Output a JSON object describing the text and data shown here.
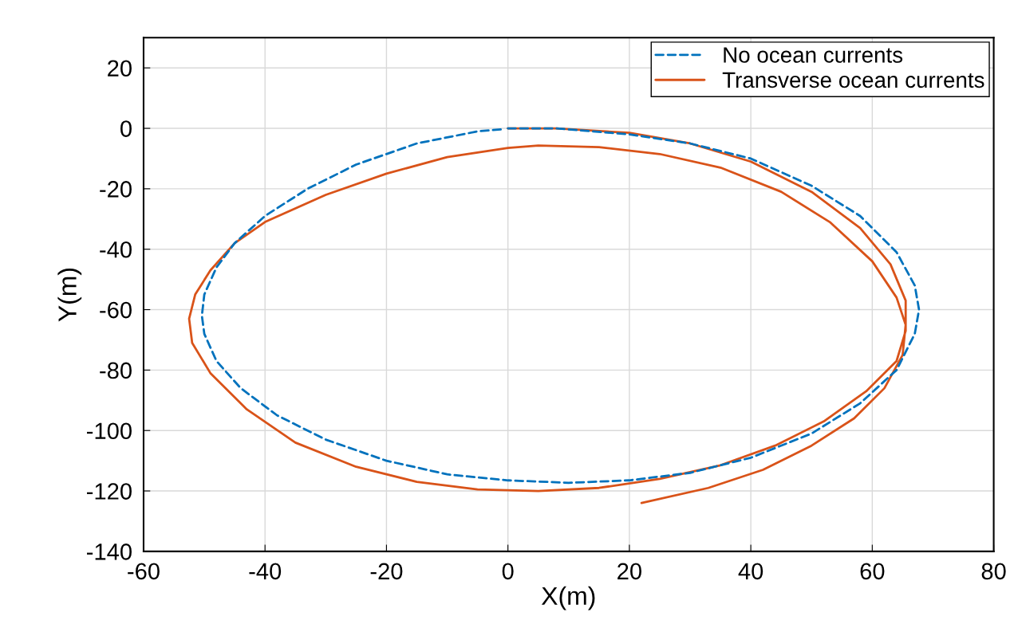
{
  "chart_data": {
    "type": "line",
    "xlabel": "X(m)",
    "ylabel": "Y(m)",
    "xlim": [
      -60,
      80
    ],
    "xticks": [
      -60,
      -40,
      -20,
      0,
      20,
      40,
      60,
      80
    ],
    "ylim": [
      -140,
      30
    ],
    "yticks": [
      -140,
      -120,
      -100,
      -80,
      -60,
      -40,
      -20,
      0,
      20
    ],
    "grid": true,
    "legend": "top right",
    "series": [
      {
        "name": "No ocean currents",
        "color": "#0072bd",
        "line_style": "dashed",
        "x": [
          0,
          8,
          20,
          30,
          40,
          50,
          58,
          64,
          67,
          67.7,
          67,
          64,
          58,
          50,
          40,
          30,
          20,
          10,
          0,
          -10,
          -20,
          -30,
          -38,
          -44,
          -48,
          -50,
          -50.4,
          -50,
          -48,
          -45,
          -40,
          -33,
          -25,
          -15,
          -5,
          -1
        ],
        "values": [
          0,
          0,
          -2,
          -5,
          -10,
          -19,
          -29,
          -41,
          -52,
          -60,
          -68,
          -80,
          -91,
          -101,
          -109,
          -114,
          -116.5,
          -117.3,
          -116.5,
          -114.5,
          -110,
          -103,
          -95,
          -86,
          -77,
          -68,
          -62,
          -55,
          -46,
          -38,
          -29,
          -20,
          -12,
          -5,
          -1,
          -0.3
        ]
      },
      {
        "name": "Transverse ocean currents",
        "color": "#d95319",
        "line_style": "solid",
        "x": [
          0,
          8,
          20,
          30,
          40,
          50,
          58,
          63,
          65.5,
          65.5,
          64,
          59,
          52,
          44,
          35,
          25,
          15,
          5,
          -5,
          -15,
          -25,
          -35,
          -43,
          -49,
          -52,
          -52.5,
          -51.5,
          -49,
          -45,
          -40,
          -30,
          -20,
          -10,
          0,
          5,
          15,
          25,
          35,
          45,
          53,
          60,
          64,
          65.5,
          65,
          62,
          57,
          50,
          42,
          33,
          22
        ],
        "values": [
          0,
          0,
          -1.5,
          -5,
          -11,
          -21,
          -33,
          -45,
          -57,
          -67,
          -77,
          -87,
          -97,
          -105,
          -111.5,
          -116,
          -119,
          -120,
          -119.5,
          -117,
          -112,
          -104,
          -93,
          -81,
          -71,
          -63,
          -55,
          -47,
          -38,
          -31,
          -22,
          -15,
          -9.5,
          -6.5,
          -5.7,
          -6.2,
          -8.5,
          -13,
          -21,
          -31,
          -44,
          -56,
          -65,
          -75,
          -86,
          -96,
          -105,
          -113,
          -119,
          -124
        ]
      }
    ]
  }
}
